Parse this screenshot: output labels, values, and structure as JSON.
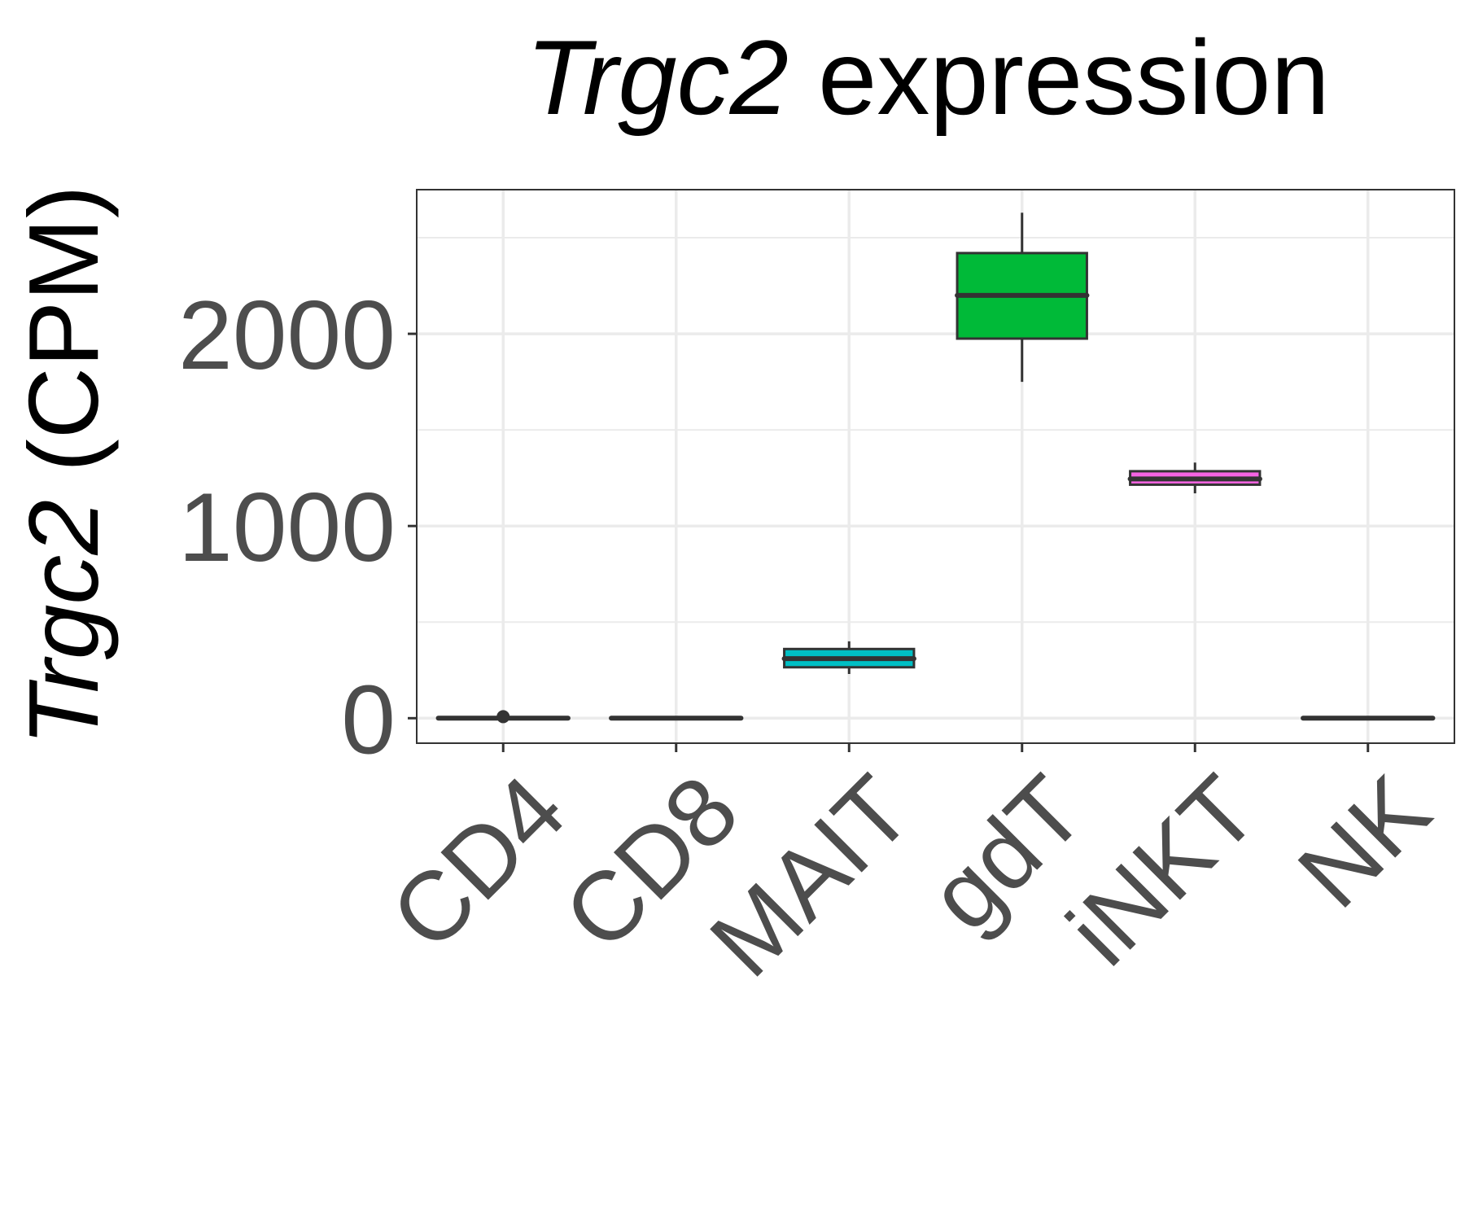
{
  "chart_data": {
    "type": "box",
    "title": {
      "italic": "Trgc2",
      "rest": " expression"
    },
    "ylabel": {
      "italic": "Trgc2",
      "rest": " (CPM)"
    },
    "xlabel": "",
    "ylim": [
      -130,
      2750
    ],
    "yticks": [
      0,
      1000,
      2000
    ],
    "grid": true,
    "categories": [
      "CD4",
      "CD8",
      "MAIT",
      "gdT",
      "iNKT",
      "NK"
    ],
    "boxes": [
      {
        "category": "CD4",
        "whisker_low": 0,
        "q1": 0,
        "median": 0,
        "q3": 0,
        "whisker_high": 0,
        "outliers": [
          8
        ],
        "color": "#F8766D"
      },
      {
        "category": "CD8",
        "whisker_low": 0,
        "q1": 0,
        "median": 0,
        "q3": 0,
        "whisker_high": 0,
        "outliers": [],
        "color": "#B79F00"
      },
      {
        "category": "MAIT",
        "whisker_low": 230,
        "q1": 265,
        "median": 310,
        "q3": 360,
        "whisker_high": 400,
        "outliers": [],
        "color": "#00BFC4"
      },
      {
        "category": "gdT",
        "whisker_low": 1750,
        "q1": 1975,
        "median": 2200,
        "q3": 2420,
        "whisker_high": 2630,
        "outliers": [],
        "color": "#00BA38"
      },
      {
        "category": "iNKT",
        "whisker_low": 1170,
        "q1": 1215,
        "median": 1245,
        "q3": 1285,
        "whisker_high": 1330,
        "outliers": [],
        "color": "#F564E3"
      },
      {
        "category": "NK",
        "whisker_low": 0,
        "q1": 0,
        "median": 0,
        "q3": 0,
        "whisker_high": 0,
        "outliers": [],
        "color": "#619CFF"
      }
    ]
  }
}
